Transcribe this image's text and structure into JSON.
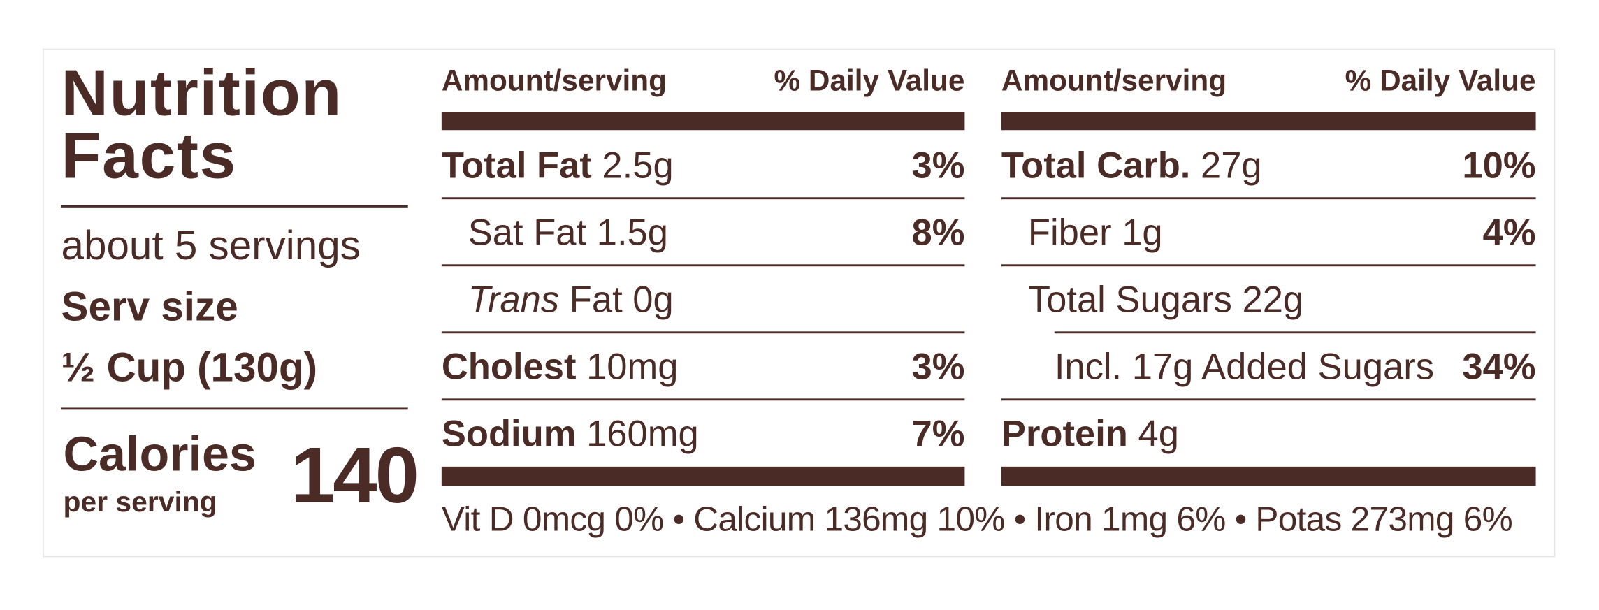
{
  "title": "Nutrition Facts",
  "servings": "about 5 servings",
  "serving_size_label": "Serv size",
  "serving_size": "½ Cup (130g)",
  "calories_label": "Calories",
  "calories_sub": "per serving",
  "calories": 140,
  "columns": [
    {
      "header": {
        "amount": "Amount/serving",
        "dv": "% Daily Value"
      },
      "rows": [
        {
          "name": "Total Fat",
          "amount": "2.5g",
          "dv": "3%",
          "bold": true,
          "indent": 0
        },
        {
          "name": "Sat Fat",
          "amount": "1.5g",
          "dv": "8%",
          "bold": false,
          "indent": 1
        },
        {
          "prefix": "Trans",
          "name": "Fat",
          "amount": "0g",
          "bold": false,
          "indent": 1
        },
        {
          "name": "Cholest",
          "amount": "10mg",
          "dv": "3%",
          "bold": true,
          "indent": 0
        },
        {
          "name": "Sodium",
          "amount": "160mg",
          "dv": "7%",
          "bold": true,
          "indent": 0
        }
      ]
    },
    {
      "header": {
        "amount": "Amount/serving",
        "dv": "% Daily Value"
      },
      "rows": [
        {
          "name": "Total Carb.",
          "amount": "27g",
          "dv": "10%",
          "bold": true,
          "indent": 0
        },
        {
          "name": "Fiber",
          "amount": "1g",
          "dv": "4%",
          "bold": false,
          "indent": 1
        },
        {
          "name": "Total Sugars",
          "amount": "22g",
          "bold": false,
          "indent": 1
        },
        {
          "name": "Incl. 17g Added Sugars",
          "dv": "34%",
          "bold": false,
          "indent": 2
        },
        {
          "name": "Protein",
          "amount": "4g",
          "bold": true,
          "indent": 0
        }
      ]
    }
  ],
  "footer": "Vit D 0mcg 0% • Calcium 136mg 10% • Iron 1mg 6% • Potas 273mg 6%"
}
